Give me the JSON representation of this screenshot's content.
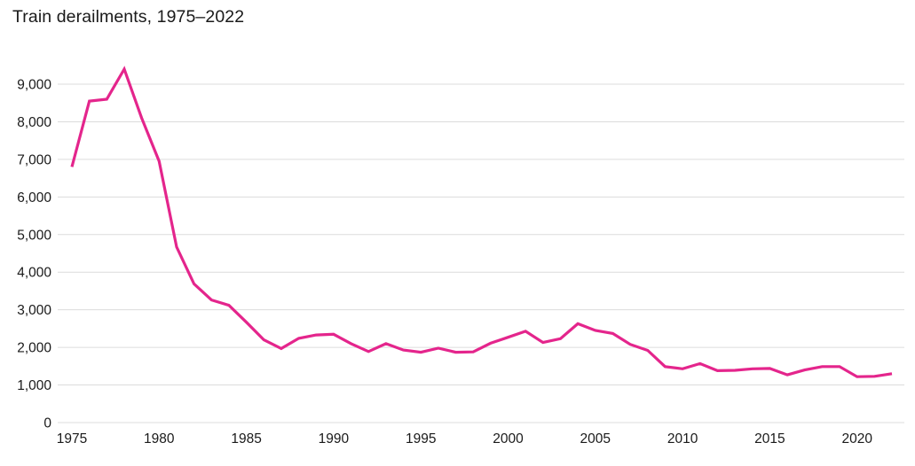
{
  "page": {
    "background_color": "#ffffff",
    "text_color": "#1a1a1a"
  },
  "chart_data": {
    "type": "line",
    "title": "Train derailments, 1975–2022",
    "series_name": "Train derailments",
    "line_color": "#e4258c",
    "grid_color": "#dcdcdc",
    "axis_text_color": "#1a1a1a",
    "grid": true,
    "legend": false,
    "xlim": [
      1975,
      2022
    ],
    "ylim": [
      0,
      9400
    ],
    "x": [
      1975,
      1976,
      1977,
      1978,
      1979,
      1980,
      1981,
      1982,
      1983,
      1984,
      1985,
      1986,
      1987,
      1988,
      1989,
      1990,
      1991,
      1992,
      1993,
      1994,
      1995,
      1996,
      1997,
      1998,
      1999,
      2000,
      2001,
      2002,
      2003,
      2004,
      2005,
      2006,
      2007,
      2008,
      2009,
      2010,
      2011,
      2012,
      2013,
      2014,
      2015,
      2016,
      2017,
      2018,
      2019,
      2020,
      2021,
      2022
    ],
    "values": [
      6800,
      8550,
      8600,
      9400,
      8100,
      6950,
      4670,
      3690,
      3260,
      3120,
      2670,
      2200,
      1970,
      2240,
      2330,
      2350,
      2100,
      1890,
      2100,
      1930,
      1870,
      1980,
      1870,
      1880,
      2110,
      2270,
      2430,
      2130,
      2230,
      2630,
      2450,
      2370,
      2080,
      1920,
      1490,
      1430,
      1570,
      1380,
      1390,
      1430,
      1440,
      1270,
      1400,
      1490,
      1490,
      1220,
      1230,
      1300
    ],
    "x_ticks": {
      "values": [
        1975,
        1980,
        1985,
        1990,
        1995,
        2000,
        2005,
        2010,
        2015,
        2020
      ],
      "labels": [
        "1975",
        "1980",
        "1985",
        "1990",
        "1995",
        "2000",
        "2005",
        "2010",
        "2015",
        "2020"
      ]
    },
    "y_ticks": {
      "values": [
        0,
        1000,
        2000,
        3000,
        4000,
        5000,
        6000,
        7000,
        8000,
        9000
      ],
      "labels": [
        "0",
        "1,000",
        "2,000",
        "3,000",
        "4,000",
        "5,000",
        "6,000",
        "7,000",
        "8,000",
        "9,000"
      ]
    }
  }
}
